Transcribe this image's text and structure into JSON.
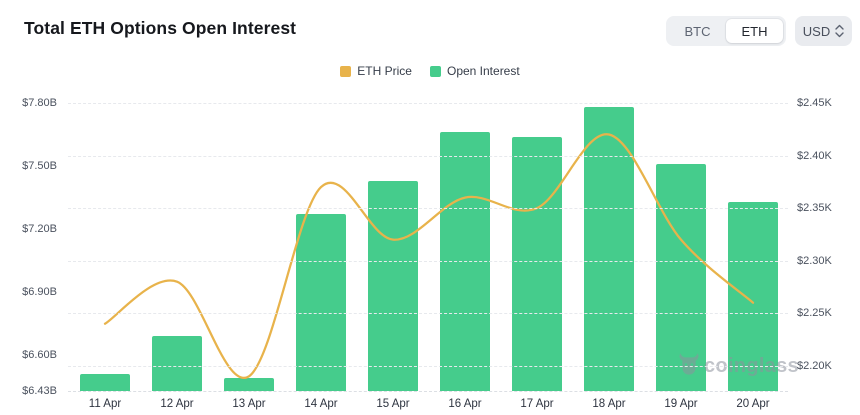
{
  "header": {
    "title": "Total ETH Options Open Interest",
    "coin_toggle": {
      "options": [
        "BTC",
        "ETH"
      ],
      "selected": "ETH"
    },
    "currency_select": {
      "value": "USD"
    }
  },
  "watermark": {
    "text": "coinglass"
  },
  "colors": {
    "bar_green": "#45CC8C",
    "line_yellow": "#E8B34B",
    "grid": "#e7e9ed",
    "axis_text": "#4a515e"
  },
  "chart_data": {
    "type": "bar",
    "subtype": "dual-axis bar+line combo",
    "categories": [
      "11 Apr",
      "12 Apr",
      "13 Apr",
      "14 Apr",
      "15 Apr",
      "16 Apr",
      "17 Apr",
      "18 Apr",
      "19 Apr",
      "20 Apr"
    ],
    "series": [
      {
        "name": "ETH Price",
        "type": "line",
        "axis": "right",
        "unit": "USD (K)",
        "color": "#E8B34B",
        "values": [
          2.24,
          2.28,
          2.19,
          2.37,
          2.32,
          2.36,
          2.35,
          2.42,
          2.32,
          2.26
        ]
      },
      {
        "name": "Open Interest",
        "type": "bar",
        "axis": "left",
        "unit": "USD (B)",
        "color": "#45CC8C",
        "values": [
          6.51,
          6.69,
          6.49,
          7.27,
          7.43,
          7.66,
          7.64,
          7.78,
          7.51,
          7.33
        ]
      }
    ],
    "left_axis": {
      "min": 6.43,
      "max": 7.8,
      "ticks": [
        {
          "label": "$7.80B",
          "value": 7.8
        },
        {
          "label": "$7.50B",
          "value": 7.5
        },
        {
          "label": "$7.20B",
          "value": 7.2
        },
        {
          "label": "$6.90B",
          "value": 6.9
        },
        {
          "label": "$6.60B",
          "value": 6.6
        },
        {
          "label": "$6.43B",
          "value": 6.43
        }
      ]
    },
    "right_axis": {
      "min": 2.176,
      "max": 2.45,
      "ticks": [
        {
          "label": "$2.45K",
          "value": 2.45
        },
        {
          "label": "$2.40K",
          "value": 2.4
        },
        {
          "label": "$2.35K",
          "value": 2.35
        },
        {
          "label": "$2.30K",
          "value": 2.3
        },
        {
          "label": "$2.25K",
          "value": 2.25
        },
        {
          "label": "$2.20K",
          "value": 2.2
        }
      ]
    },
    "grid": "dashed horizontal lines at right-axis ticks",
    "legend_position": "top-center",
    "legend_order": [
      "ETH Price",
      "Open Interest"
    ]
  }
}
